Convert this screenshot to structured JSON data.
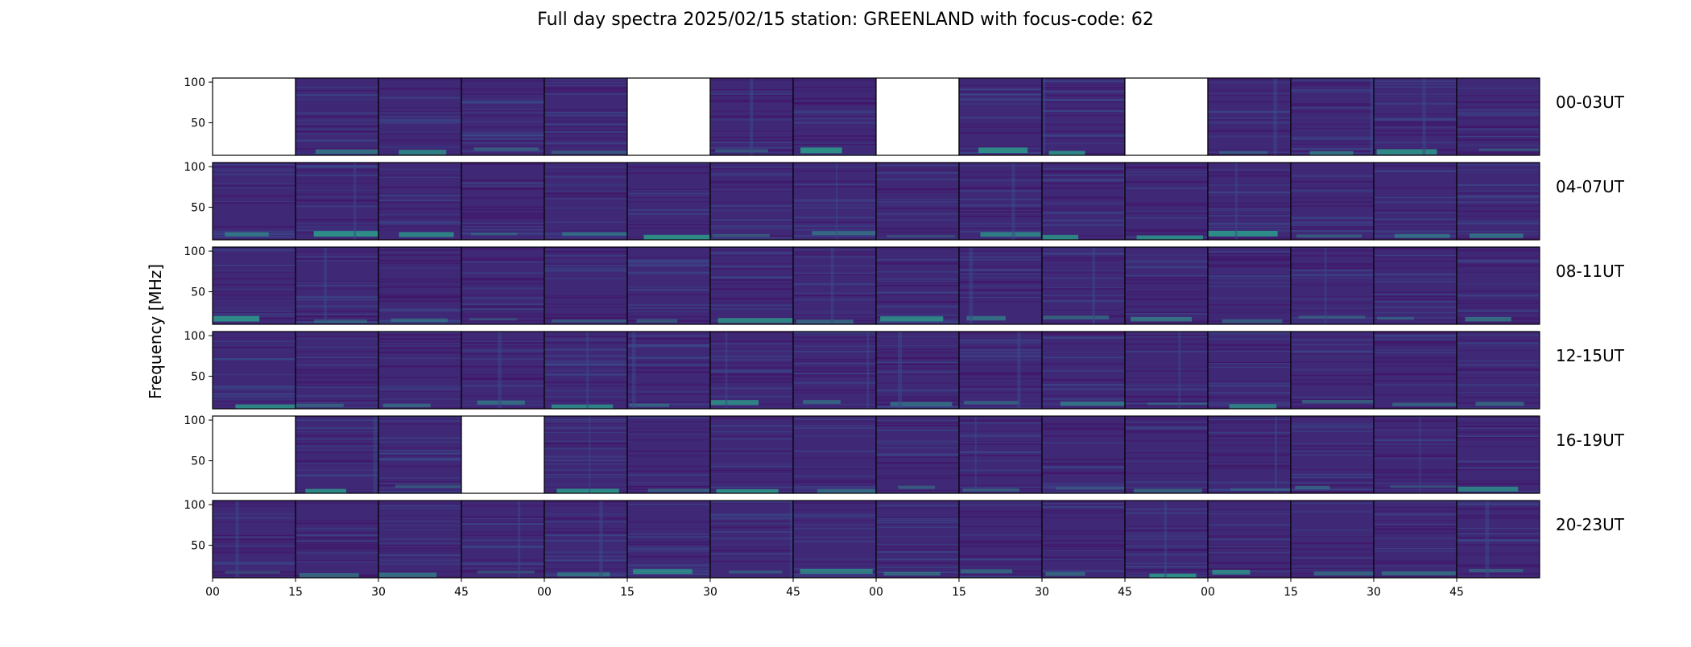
{
  "title": "Full day spectra 2025/02/15 station: GREENLAND with focus-code: 62",
  "ylabel": "Frequency [MHz]",
  "colors": {
    "base": "#3f2876",
    "dark": "#431466",
    "line": "#3a4a8a",
    "teal": "#2aa08a",
    "green": "#2f8f8a",
    "frame": "#000000"
  },
  "colormap": "viridis",
  "chart_data": {
    "type": "heatmap",
    "description_free": true,
    "xlabel": "",
    "ylabel": "Frequency [MHz]",
    "ylim": [
      10,
      105
    ],
    "yticks": [
      50,
      100
    ],
    "xticks": [
      "00",
      "15",
      "30",
      "45",
      "00",
      "15",
      "30",
      "45",
      "00",
      "15",
      "30",
      "45",
      "00",
      "15",
      "30",
      "45"
    ],
    "rows": [
      {
        "label": "00-03UT",
        "missing_panels": [
          0,
          5,
          8,
          11
        ]
      },
      {
        "label": "04-07UT",
        "missing_panels": []
      },
      {
        "label": "08-11UT",
        "missing_panels": []
      },
      {
        "label": "12-15UT",
        "missing_panels": []
      },
      {
        "label": "16-19UT",
        "missing_panels": [
          0,
          3
        ]
      },
      {
        "label": "20-23UT",
        "missing_panels": []
      }
    ],
    "panels_per_row": 16,
    "minutes_per_panel": 15
  }
}
